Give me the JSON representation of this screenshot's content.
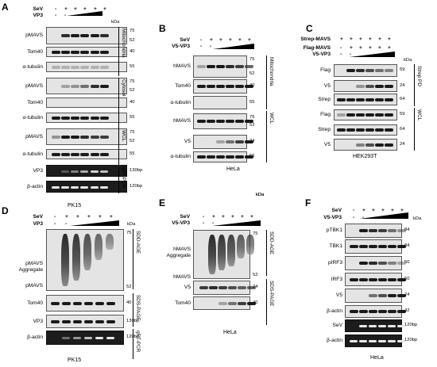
{
  "kda_unit": "kDa",
  "panels": {
    "A": {
      "letter": "A",
      "caption": "PK15",
      "wedge_label": "VP3",
      "treatments": [
        {
          "label": "SeV",
          "signs": [
            "-",
            "+",
            "+",
            "+",
            "+",
            "+"
          ]
        },
        {
          "label": "VP3",
          "signs": [
            "-",
            "-",
            "",
            "",
            "",
            ""
          ]
        }
      ],
      "rows": [
        {
          "label": "pMAVS",
          "markers": [
            "75",
            "52"
          ]
        },
        {
          "label": "Tom40",
          "markers": [
            "40"
          ]
        },
        {
          "label": "α-tubulin",
          "markers": [
            "55"
          ]
        },
        {
          "label": "pMAVS",
          "markers": [
            "75",
            "52"
          ]
        },
        {
          "label": "Tom40",
          "markers": [
            "40"
          ]
        },
        {
          "label": "α-tubulin",
          "markers": [
            "55"
          ]
        },
        {
          "label": "pMAVS",
          "markers": [
            "75",
            "52"
          ]
        },
        {
          "label": "α-tubulin",
          "markers": [
            "55"
          ]
        },
        {
          "label": "VP3",
          "markers": [
            "130bp"
          ]
        },
        {
          "label": "β-actin",
          "markers": [
            "120bp"
          ]
        }
      ],
      "groups": [
        "Mitochondria",
        "Cytosol",
        "WCL",
        "qRT-PCR"
      ]
    },
    "B": {
      "letter": "B",
      "caption": "HeLa",
      "wedge_label": "V5-VP3",
      "treatments": [
        {
          "label": "SeV",
          "signs": [
            "-",
            "+",
            "+",
            "+",
            "+",
            "+"
          ]
        },
        {
          "label": "V5-VP3",
          "signs": [
            "-",
            "-",
            "",
            "",
            "",
            ""
          ]
        }
      ],
      "rows": [
        {
          "label": "hMAVS",
          "markers": [
            "75",
            "52"
          ]
        },
        {
          "label": "Tom40",
          "markers": [
            "40"
          ]
        },
        {
          "label": "α-tubulin",
          "markers": [
            "55"
          ]
        },
        {
          "label": "hMAVS",
          "markers": [
            "75",
            "52"
          ]
        },
        {
          "label": "V5",
          "markers": [
            "24"
          ]
        },
        {
          "label": "α-tubulin",
          "markers": [
            "55"
          ]
        }
      ],
      "groups": [
        "Mitochondria",
        "WCL"
      ]
    },
    "C": {
      "letter": "C",
      "caption": "HEK293T",
      "wedge_label": "V5-VP3",
      "treatments": [
        {
          "label": "Strep-MAVS",
          "signs": [
            "+",
            "+",
            "+",
            "+",
            "+",
            "+"
          ]
        },
        {
          "label": "Flag-MAVS",
          "signs": [
            "-",
            "+",
            "+",
            "+",
            "+",
            "+"
          ]
        },
        {
          "label": "V5-VP3",
          "signs": [
            "-",
            "-",
            "",
            "",
            "",
            ""
          ]
        }
      ],
      "rows": [
        {
          "label": "Flag",
          "markers": [
            "59"
          ]
        },
        {
          "label": "V5",
          "markers": [
            "24"
          ]
        },
        {
          "label": "Strep",
          "markers": [
            "64"
          ]
        },
        {
          "label": "Flag",
          "markers": [
            "59"
          ]
        },
        {
          "label": "Strep",
          "markers": [
            "64"
          ]
        },
        {
          "label": "V5",
          "markers": [
            "24"
          ]
        }
      ],
      "groups": [
        "Strep PD",
        "WCL"
      ]
    },
    "D": {
      "letter": "D",
      "caption": "PK15",
      "wedge_label": "VP3",
      "treatments": [
        {
          "label": "SeV",
          "signs": [
            "-",
            "+",
            "+",
            "+",
            "+",
            "+"
          ]
        },
        {
          "label": "VP3",
          "signs": [
            "-",
            "-",
            "",
            "",
            "",
            ""
          ]
        }
      ],
      "aggregate_labels": [
        "pMAVS",
        "Aggregate",
        "pMAVS"
      ],
      "rows": [
        {
          "label": "pMAVS",
          "markers": [
            "75",
            "52"
          ]
        },
        {
          "label": "Tom40",
          "markers": [
            "40"
          ]
        },
        {
          "label": "VP3",
          "markers": [
            "130bp"
          ]
        },
        {
          "label": "β-actin",
          "markers": [
            "120bp"
          ]
        }
      ],
      "groups": [
        "SDD-AGE",
        "SDS-PAGE",
        "qRT-PCR"
      ]
    },
    "E": {
      "letter": "E",
      "caption": "HeLa",
      "wedge_label": "V5-VP3",
      "treatments": [
        {
          "label": "SeV",
          "signs": [
            "-",
            "+",
            "+",
            "+",
            "+",
            "+"
          ]
        },
        {
          "label": "V5-VP3",
          "signs": [
            "-",
            "-",
            "",
            "",
            "",
            ""
          ]
        }
      ],
      "aggregate_labels": [
        "hMAVS",
        "Aggregate",
        "hMAVS"
      ],
      "rows": [
        {
          "label": "hMAVS",
          "markers": [
            "75",
            "52"
          ]
        },
        {
          "label": "V5",
          "markers": [
            "24"
          ]
        },
        {
          "label": "Tom40",
          "markers": [
            "40"
          ]
        }
      ],
      "groups": [
        "SDD-AGE",
        "SDS-PAGE"
      ]
    },
    "F": {
      "letter": "F",
      "caption": "HeLa",
      "wedge_label": "V5-VP3",
      "treatments": [
        {
          "label": "SeV",
          "signs": [
            "-",
            "+",
            "+",
            "+",
            "+",
            "+"
          ]
        },
        {
          "label": "V5-VP3",
          "signs": [
            "-",
            "-",
            "",
            "",
            "",
            ""
          ]
        }
      ],
      "rows": [
        {
          "label": "pTBK1",
          "markers": [
            "84"
          ]
        },
        {
          "label": "TBK1",
          "markers": [
            "84"
          ]
        },
        {
          "label": "pIRF3",
          "markers": [
            "50"
          ]
        },
        {
          "label": "IRF3",
          "markers": [
            "50"
          ]
        },
        {
          "label": "V5",
          "markers": [
            "24"
          ]
        },
        {
          "label": "β-actin",
          "markers": [
            "42"
          ]
        },
        {
          "label": "SeV",
          "markers": [
            "120bp"
          ]
        },
        {
          "label": "β-actin",
          "markers": [
            "120bp"
          ]
        }
      ],
      "groups": []
    }
  }
}
